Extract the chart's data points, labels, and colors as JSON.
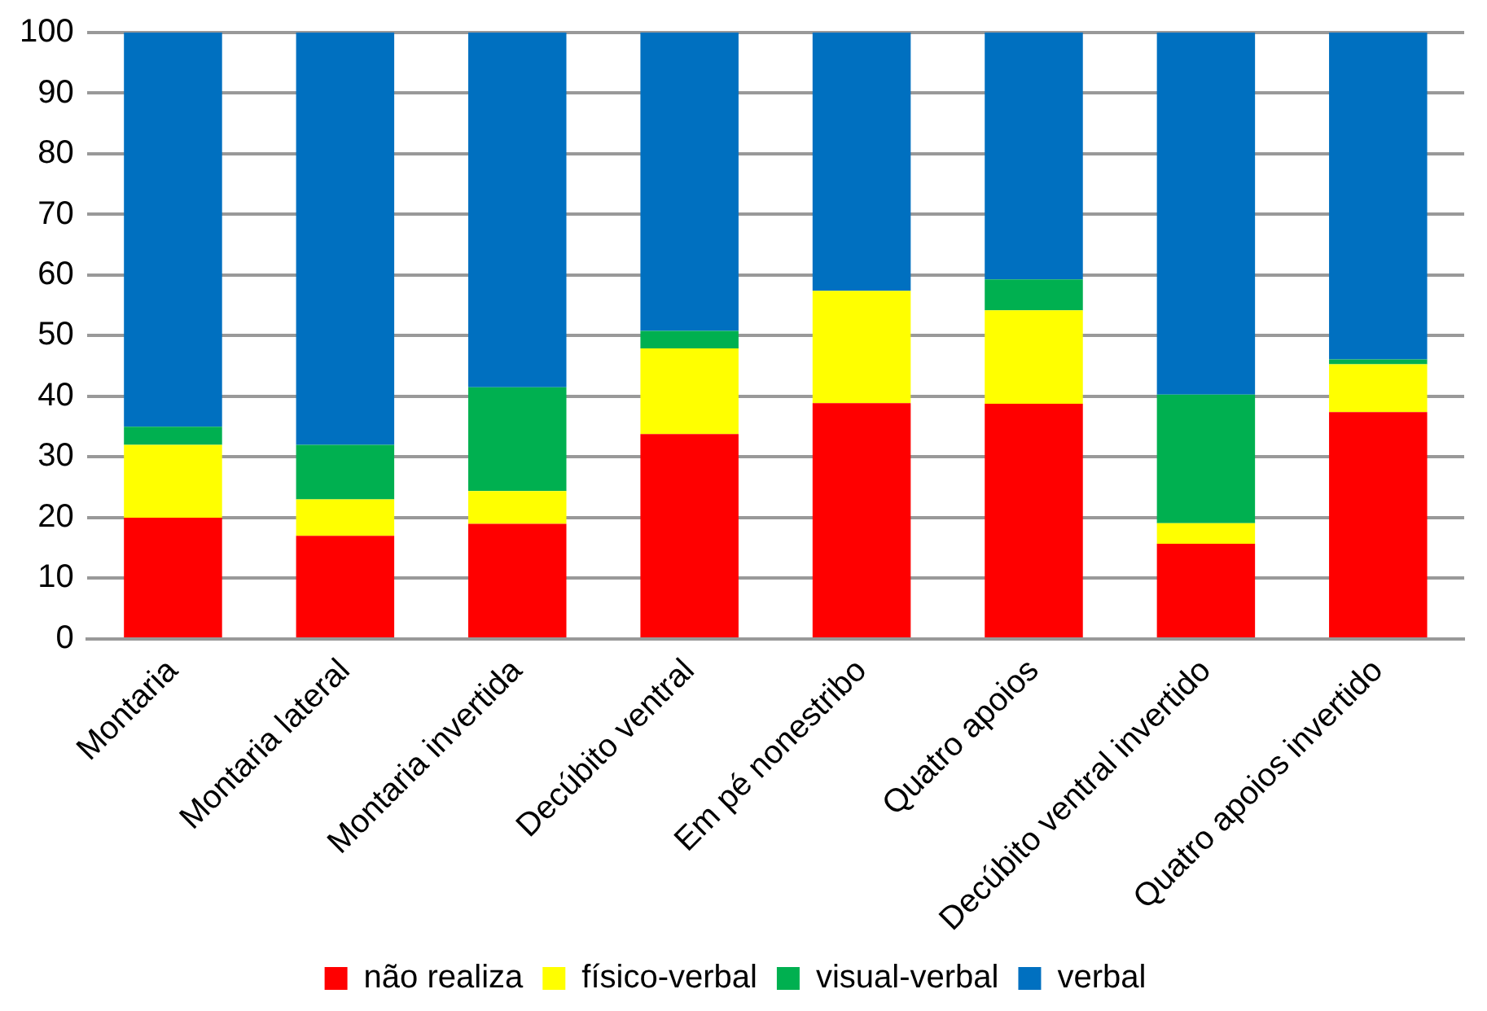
{
  "chart_data": {
    "type": "bar",
    "stacked": true,
    "categories": [
      "Montaria",
      "Montaria lateral",
      "Montaria invertida",
      "Decúbito ventral",
      "Em pé nonestribo",
      "Quatro apoios",
      "Decúbito ventral invertido",
      "Quatro apoios invertido"
    ],
    "series": [
      {
        "name": "não realiza",
        "color": "#ff0000",
        "values": [
          20,
          17,
          19,
          33.8,
          38.9,
          38.8,
          15.7,
          37.4
        ]
      },
      {
        "name": "físico-verbal",
        "color": "#ffff00",
        "values": [
          12,
          6,
          5.4,
          14.1,
          18.5,
          15.4,
          3.4,
          7.9
        ]
      },
      {
        "name": "visual-verbal",
        "color": "#00b050",
        "values": [
          3,
          9,
          17.1,
          2.9,
          0,
          5.1,
          21.2,
          0.8
        ]
      },
      {
        "name": "verbal",
        "color": "#0070c0",
        "values": [
          65,
          68,
          58.5,
          49.2,
          42.6,
          40.7,
          59.7,
          53.9
        ]
      }
    ],
    "ylim": [
      0,
      100
    ],
    "yticks": [
      0,
      10,
      20,
      30,
      40,
      50,
      60,
      70,
      80,
      90,
      100
    ],
    "grid": "y",
    "legend": "bottom"
  }
}
